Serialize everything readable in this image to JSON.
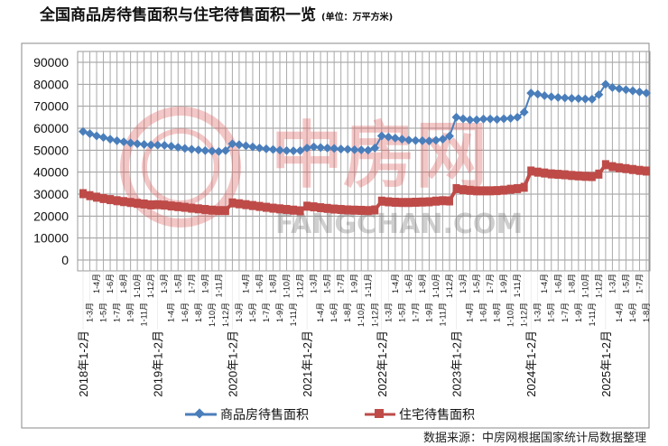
{
  "chart_data": {
    "type": "line",
    "title": "全国商品房待售面积与住宅待售面积一览",
    "subtitle": "(单位：万平方米)",
    "xlabel": "",
    "ylabel": "",
    "ylim": [
      0,
      90000
    ],
    "yticks": [
      "0",
      "10000",
      "20000",
      "30000",
      "40000",
      "50000",
      "60000",
      "70000",
      "80000",
      "90000"
    ],
    "grid": true,
    "legend_position": "bottom",
    "categories": [
      "2018年1-2月",
      "1-3月",
      "1-4月",
      "1-5月",
      "1-6月",
      "1-7月",
      "1-8月",
      "1-9月",
      "1-10月",
      "1-11月",
      "1-12月",
      "2019年1-2月",
      "1-3月",
      "1-4月",
      "1-5月",
      "1-6月",
      "1-7月",
      "1-8月",
      "1-9月",
      "1-10月",
      "1-11月",
      "1-12月",
      "2020年1-2月",
      "1-3月",
      "1-4月",
      "1-5月",
      "1-6月",
      "1-7月",
      "1-8月",
      "1-9月",
      "1-10月",
      "1-11月",
      "1-12月",
      "2021年1-2月",
      "1-3月",
      "1-4月",
      "1-5月",
      "1-6月",
      "1-7月",
      "1-8月",
      "1-9月",
      "1-10月",
      "1-11月",
      "1-12月",
      "2022年1-2月",
      "1-3月",
      "1-4月",
      "1-5月",
      "1-6月",
      "1-7月",
      "1-8月",
      "1-9月",
      "1-10月",
      "1-11月",
      "1-12月",
      "2023年1-2月",
      "1-3月",
      "1-4月",
      "1-5月",
      "1-6月",
      "1-7月",
      "1-8月",
      "1-9月",
      "1-10月",
      "1-11月",
      "1-12月",
      "2024年1-2月",
      "1-3月",
      "1-4月",
      "1-5月",
      "1-6月",
      "1-7月",
      "1-8月",
      "1-9月",
      "1-10月",
      "1-11月",
      "1-12月",
      "2025年1-2月",
      "1-3月",
      "1-4月",
      "1-5月",
      "1-6月",
      "1-7月",
      "1-8月"
    ],
    "series": [
      {
        "name": "商品房待售面积",
        "color": "#4A7EBB",
        "marker": "diamond",
        "values": [
          58500,
          57500,
          56500,
          55800,
          55000,
          54300,
          53800,
          53300,
          52900,
          52600,
          52400,
          52300,
          52200,
          51800,
          51300,
          50800,
          50400,
          50100,
          49800,
          49600,
          49400,
          49800,
          52900,
          52500,
          52000,
          51500,
          51000,
          50600,
          50300,
          50000,
          49800,
          49700,
          49800,
          51000,
          51500,
          51200,
          51000,
          50800,
          50500,
          50400,
          50200,
          50100,
          50000,
          51000,
          56500,
          56000,
          55500,
          55000,
          54600,
          54400,
          54300,
          54200,
          54500,
          55000,
          56400,
          65000,
          64300,
          63800,
          63800,
          64200,
          64200,
          64000,
          64300,
          64500,
          65000,
          67300,
          76000,
          75500,
          74800,
          74300,
          74000,
          73800,
          73600,
          73500,
          73300,
          73200,
          75300,
          80000,
          78500,
          78000,
          77500,
          77000,
          76500,
          76000
        ]
      },
      {
        "name": "住宅待售面积",
        "color": "#BE4B48",
        "marker": "square",
        "values": [
          30200,
          29300,
          28600,
          28000,
          27500,
          27000,
          26600,
          26200,
          25800,
          25500,
          25100,
          25200,
          25000,
          24600,
          24300,
          24000,
          23600,
          23300,
          23000,
          22700,
          22500,
          22500,
          26000,
          25600,
          25200,
          24800,
          24400,
          24000,
          23600,
          23300,
          23000,
          22700,
          22400,
          24500,
          24200,
          23800,
          23500,
          23200,
          23000,
          22800,
          22700,
          22600,
          22500,
          22800,
          26800,
          26500,
          26300,
          26200,
          26200,
          26300,
          26400,
          26500,
          26800,
          27000,
          26900,
          32500,
          32000,
          31700,
          31500,
          31500,
          31500,
          31600,
          31800,
          32200,
          32500,
          33100,
          40500,
          40000,
          39600,
          39200,
          39000,
          38800,
          38500,
          38300,
          38100,
          38000,
          39100,
          43400,
          42500,
          42000,
          41600,
          41200,
          40800,
          40500
        ]
      }
    ]
  },
  "watermark": "中房网 FANGCHAN.COM",
  "source": "数据来源：中房网根据国家统计局数据整理"
}
